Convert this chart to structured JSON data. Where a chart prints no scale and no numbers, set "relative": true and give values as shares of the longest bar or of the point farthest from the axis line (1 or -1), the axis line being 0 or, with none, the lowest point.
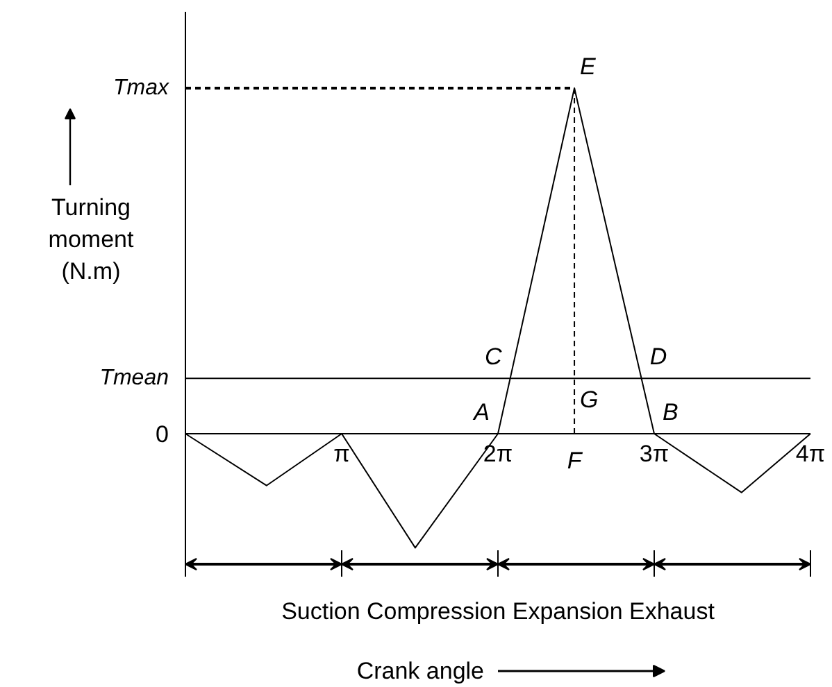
{
  "chart_data": {
    "type": "line",
    "relative": true,
    "xlabel": "Crank angle",
    "ylabel": "Turning moment (N.m)",
    "x": [
      0,
      1.63,
      3.1416,
      4.62,
      6.2832,
      7.82,
      9.4248,
      11.18,
      12.5664
    ],
    "values": [
      0,
      -0.15,
      0,
      -0.33,
      0,
      1,
      0,
      -0.17,
      0
    ],
    "color": "#000000",
    "xlim": [
      0,
      12.5664
    ],
    "xticks": [
      {
        "value": 0,
        "label": null
      },
      {
        "value": 3.1416,
        "label": "π"
      },
      {
        "value": 6.2832,
        "label": "2π"
      },
      {
        "value": 9.4248,
        "label": "3π"
      },
      {
        "value": 12.5664,
        "label": "4π"
      }
    ],
    "ref_lines": [
      {
        "axis": "y",
        "value": 0.16,
        "label": "Tmean"
      },
      {
        "axis": "y",
        "value": 1,
        "label": "Tmax",
        "line_style": "dashed"
      },
      {
        "axis": "x",
        "value": 7.82,
        "label": "F",
        "line_style": "dashed"
      }
    ],
    "annotations": [
      {
        "text": "0",
        "x": 0,
        "y": 0
      },
      {
        "text": "E",
        "x": 7.82,
        "y": 1
      },
      {
        "text": "C",
        "x": 6.53,
        "y": 0.16
      },
      {
        "text": "D",
        "x": 9.17,
        "y": 0.16
      },
      {
        "text": "G",
        "x": 7.82,
        "y": 0.16
      },
      {
        "text": "A",
        "x": 6.2832,
        "y": 0
      },
      {
        "text": "B",
        "x": 9.4248,
        "y": 0
      },
      "Suction Compression Expansion Exhaust"
    ]
  }
}
